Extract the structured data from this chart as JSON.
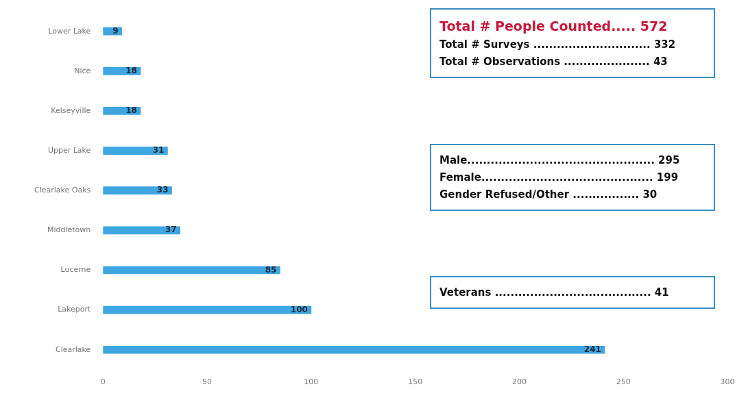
{
  "chart_data": {
    "type": "bar",
    "orientation": "horizontal",
    "categories": [
      "Lower Lake",
      "Nice",
      "Kelseyville",
      "Upper Lake",
      "Clearlake Oaks",
      "Middletown",
      "Lucerne",
      "Lakeport",
      "Clearlake"
    ],
    "values": [
      9,
      18,
      18,
      31,
      33,
      37,
      85,
      100,
      241
    ],
    "color": "#3ea6e0",
    "data_labels": true,
    "grid": false,
    "legend": false,
    "xlim": [
      0,
      300
    ],
    "xticks": [
      0,
      50,
      100,
      150,
      200,
      250,
      300
    ],
    "annotations": [
      "Total # People Counted..... 572",
      "Total # Surveys .............................. 332",
      "Total # Observations ...................... 43",
      "Male................................................ 295",
      "Female............................................ 199",
      "Gender Refused/Other ................. 30",
      "Veterans ........................................ 41"
    ]
  }
}
